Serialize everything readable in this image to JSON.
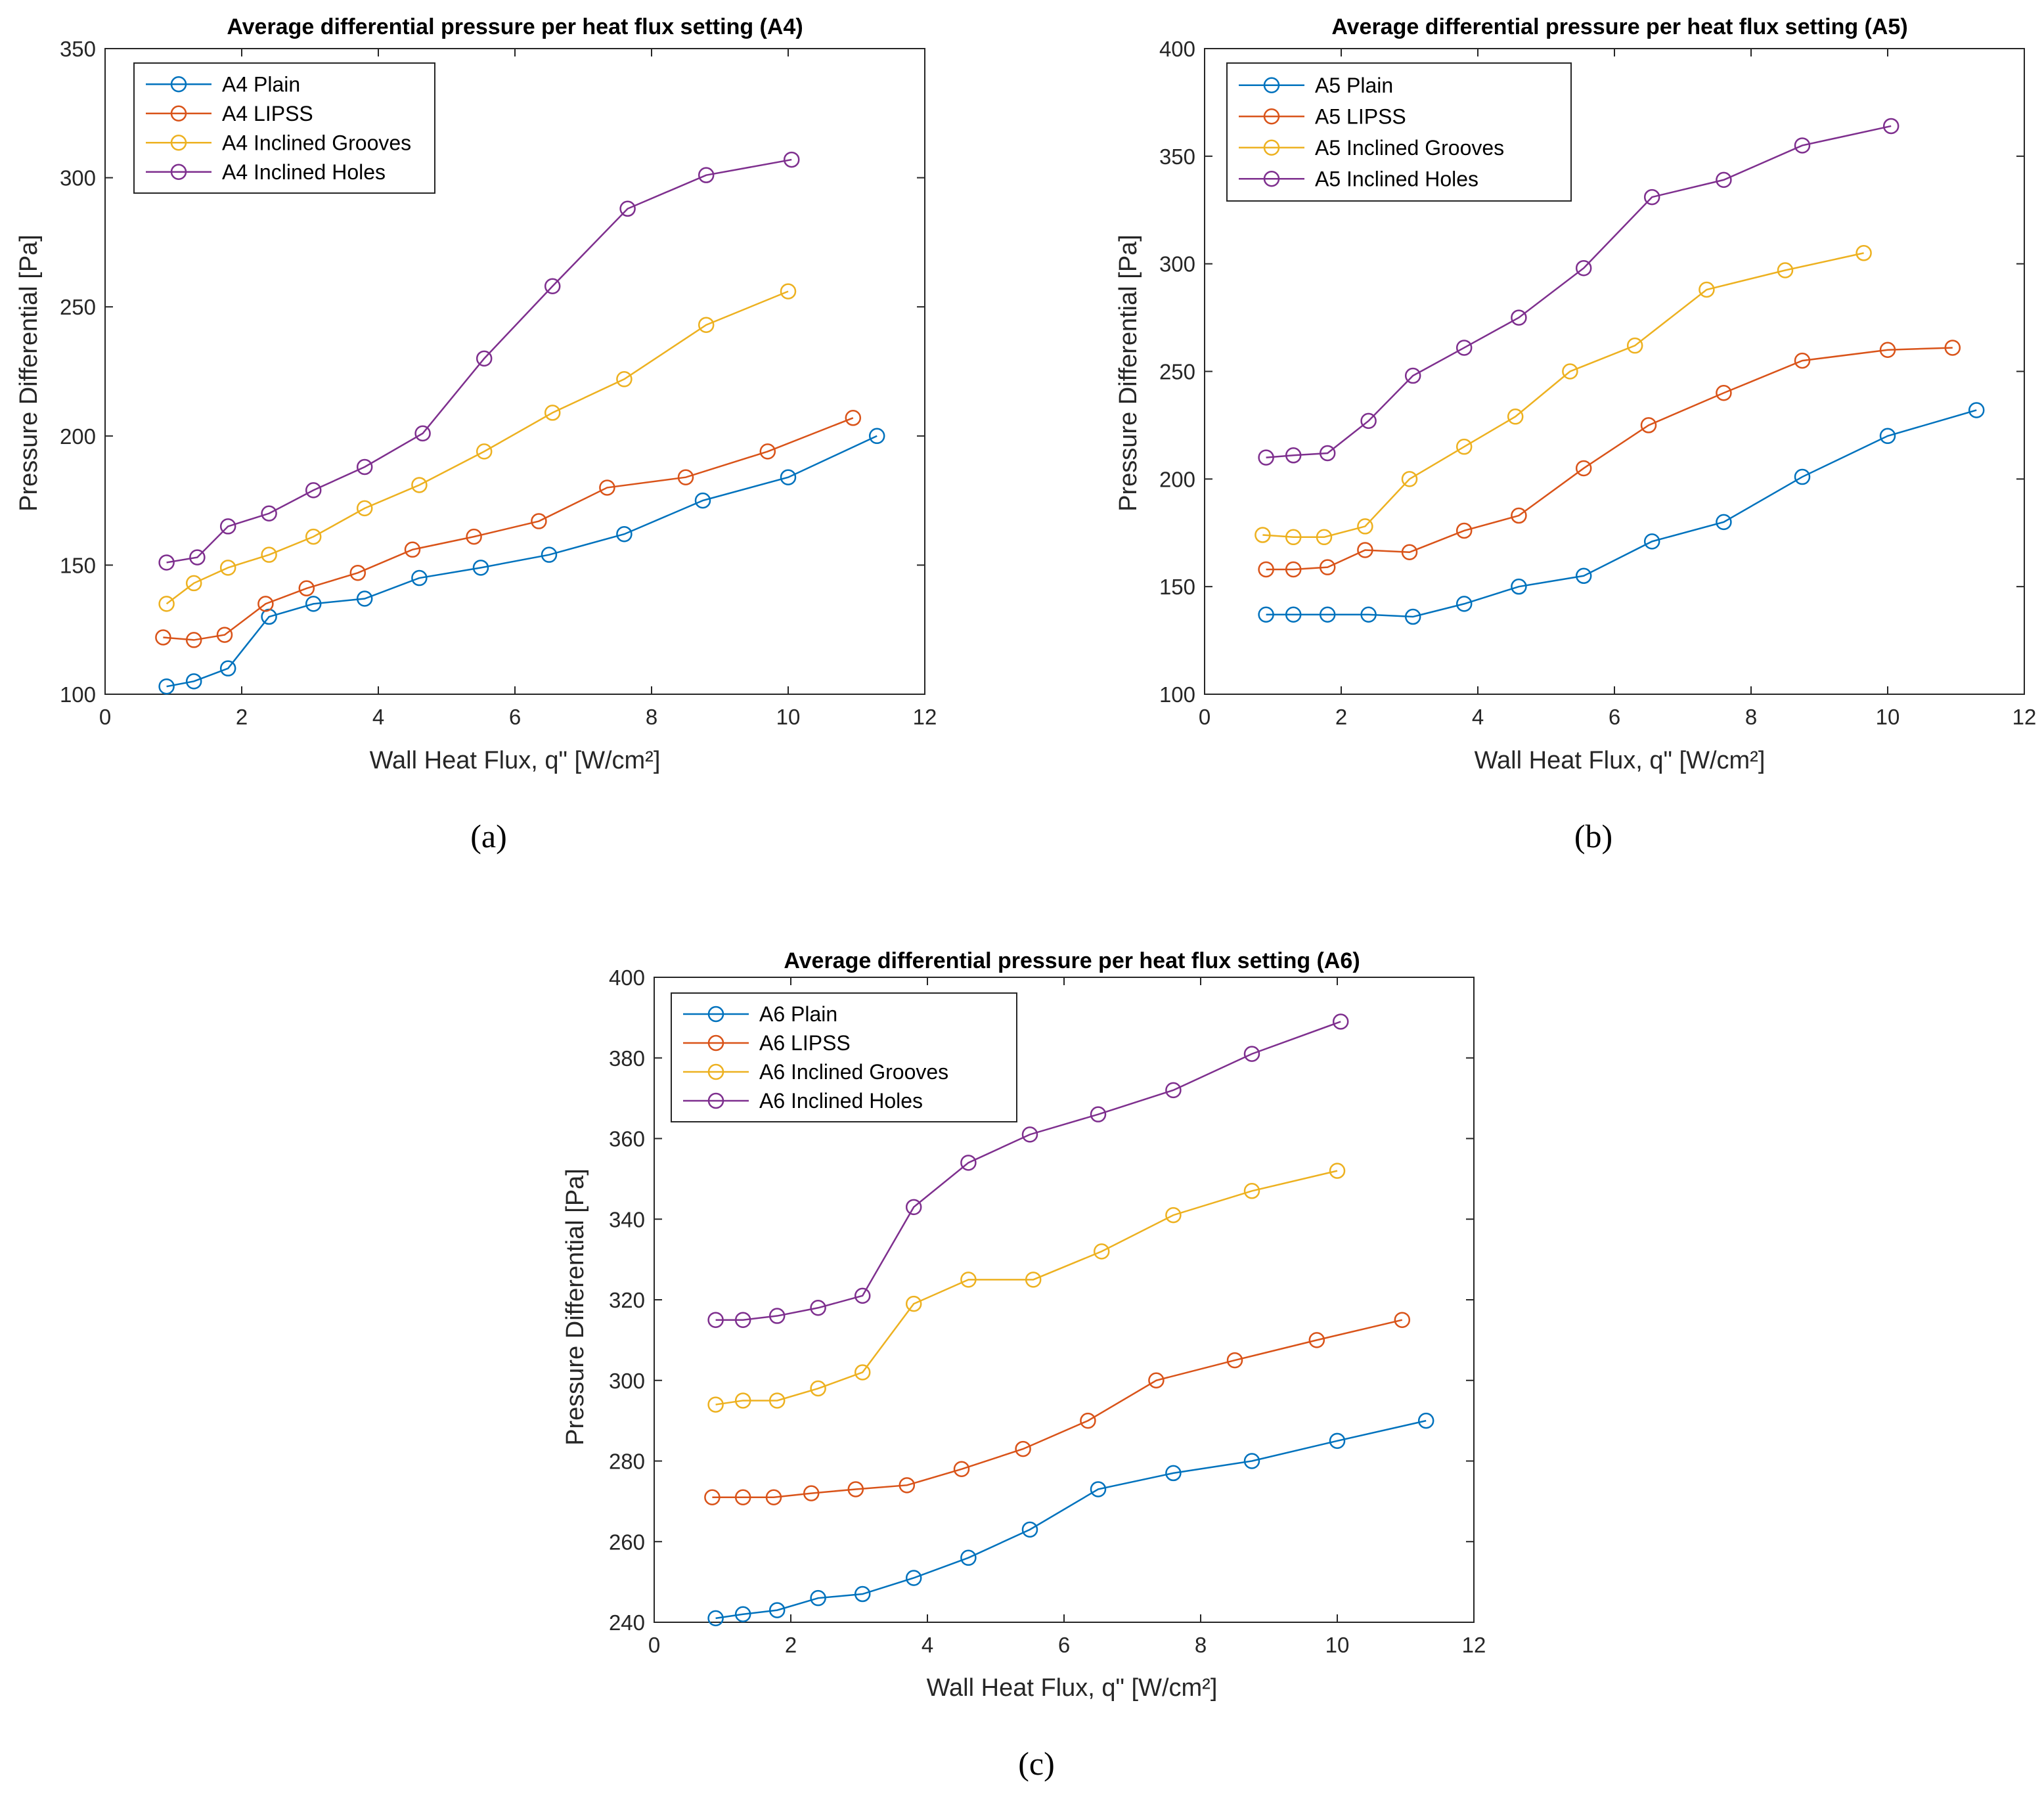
{
  "colors": {
    "plain": "#0072BD",
    "lipss": "#D95319",
    "grooves": "#EDB120",
    "holes": "#7E2F8E",
    "axis": "#262626",
    "background": "#ffffff"
  },
  "chart_data": [
    {
      "type": "line",
      "title": "Average differential pressure per heat flux setting (A4)",
      "caption": "(a)",
      "xlabel": "Wall Heat Flux, q\" [W/cm²]",
      "ylabel": "Pressure Differential [Pa]",
      "xlim": [
        0,
        12
      ],
      "ylim": [
        100,
        350
      ],
      "xticks": [
        0,
        2,
        4,
        6,
        8,
        10,
        12
      ],
      "yticks": [
        100,
        150,
        200,
        250,
        300,
        350
      ],
      "legend_position": "top-left",
      "series": [
        {
          "name": "A4 Plain",
          "color_key": "plain",
          "x": [
            0.9,
            1.3,
            1.8,
            2.4,
            3.05,
            3.8,
            4.6,
            5.5,
            6.5,
            7.6,
            8.75,
            10.0,
            11.3
          ],
          "y": [
            103,
            105,
            110,
            130,
            135,
            137,
            145,
            149,
            154,
            162,
            175,
            184,
            200
          ]
        },
        {
          "name": "A4 LIPSS",
          "color_key": "lipss",
          "x": [
            0.85,
            1.3,
            1.75,
            2.35,
            2.95,
            3.7,
            4.5,
            5.4,
            6.35,
            7.35,
            8.5,
            9.7,
            10.95
          ],
          "y": [
            122,
            121,
            123,
            135,
            141,
            147,
            156,
            161,
            167,
            180,
            184,
            194,
            207
          ]
        },
        {
          "name": "A4 Inclined Grooves",
          "color_key": "grooves",
          "x": [
            0.9,
            1.3,
            1.8,
            2.4,
            3.05,
            3.8,
            4.6,
            5.55,
            6.55,
            7.6,
            8.8,
            10.0
          ],
          "y": [
            135,
            143,
            149,
            154,
            161,
            172,
            181,
            194,
            209,
            222,
            243,
            256
          ]
        },
        {
          "name": "A4 Inclined Holes",
          "color_key": "holes",
          "x": [
            0.9,
            1.35,
            1.8,
            2.4,
            3.05,
            3.8,
            4.65,
            5.55,
            6.55,
            7.65,
            8.8,
            10.05
          ],
          "y": [
            151,
            153,
            165,
            170,
            179,
            188,
            201,
            230,
            258,
            288,
            301,
            307
          ]
        }
      ]
    },
    {
      "type": "line",
      "title": "Average differential pressure per heat flux setting (A5)",
      "caption": "(b)",
      "xlabel": "Wall Heat Flux, q\" [W/cm²]",
      "ylabel": "Pressure Differential [Pa]",
      "xlim": [
        0,
        12
      ],
      "ylim": [
        100,
        400
      ],
      "xticks": [
        0,
        2,
        4,
        6,
        8,
        10,
        12
      ],
      "yticks": [
        100,
        150,
        200,
        250,
        300,
        350,
        400
      ],
      "legend_position": "top-left",
      "series": [
        {
          "name": "A5 Plain",
          "color_key": "plain",
          "x": [
            0.9,
            1.3,
            1.8,
            2.4,
            3.05,
            3.8,
            4.6,
            5.55,
            6.55,
            7.6,
            8.75,
            10.0,
            11.3
          ],
          "y": [
            137,
            137,
            137,
            137,
            136,
            142,
            150,
            155,
            171,
            180,
            201,
            220,
            232
          ]
        },
        {
          "name": "A5 LIPSS",
          "color_key": "lipss",
          "x": [
            0.9,
            1.3,
            1.8,
            2.35,
            3.0,
            3.8,
            4.6,
            5.55,
            6.5,
            7.6,
            8.75,
            10.0,
            10.95
          ],
          "y": [
            158,
            158,
            159,
            167,
            166,
            176,
            183,
            205,
            225,
            240,
            255,
            260,
            261
          ]
        },
        {
          "name": "A5 Inclined Grooves",
          "color_key": "grooves",
          "x": [
            0.85,
            1.3,
            1.75,
            2.35,
            3.0,
            3.8,
            4.55,
            5.35,
            6.3,
            7.35,
            8.5,
            9.65
          ],
          "y": [
            174,
            173,
            173,
            178,
            200,
            215,
            229,
            250,
            262,
            288,
            297,
            305
          ]
        },
        {
          "name": "A5 Inclined Holes",
          "color_key": "holes",
          "x": [
            0.9,
            1.3,
            1.8,
            2.4,
            3.05,
            3.8,
            4.6,
            5.55,
            6.55,
            7.6,
            8.75,
            10.05
          ],
          "y": [
            210,
            211,
            212,
            227,
            248,
            261,
            275,
            298,
            331,
            339,
            355,
            364
          ]
        }
      ]
    },
    {
      "type": "line",
      "title": "Average differential pressure per heat flux setting (A6)",
      "caption": "(c)",
      "xlabel": "Wall Heat Flux, q\" [W/cm²]",
      "ylabel": "Pressure Differential [Pa]",
      "xlim": [
        0,
        12
      ],
      "ylim": [
        240,
        400
      ],
      "xticks": [
        0,
        2,
        4,
        6,
        8,
        10,
        12
      ],
      "yticks": [
        240,
        260,
        280,
        300,
        320,
        340,
        360,
        380,
        400
      ],
      "legend_position": "top-left",
      "series": [
        {
          "name": "A6 Plain",
          "color_key": "plain",
          "x": [
            0.9,
            1.3,
            1.8,
            2.4,
            3.05,
            3.8,
            4.6,
            5.5,
            6.5,
            7.6,
            8.75,
            10.0,
            11.3
          ],
          "y": [
            241,
            242,
            243,
            246,
            247,
            251,
            256,
            263,
            273,
            277,
            280,
            285,
            290
          ]
        },
        {
          "name": "A6 LIPSS",
          "color_key": "lipss",
          "x": [
            0.85,
            1.3,
            1.75,
            2.3,
            2.95,
            3.7,
            4.5,
            5.4,
            6.35,
            7.35,
            8.5,
            9.7,
            10.95
          ],
          "y": [
            271,
            271,
            271,
            272,
            273,
            274,
            278,
            283,
            290,
            300,
            305,
            310,
            315
          ]
        },
        {
          "name": "A6 Inclined Grooves",
          "color_key": "grooves",
          "x": [
            0.9,
            1.3,
            1.8,
            2.4,
            3.05,
            3.8,
            4.6,
            5.55,
            6.55,
            7.6,
            8.75,
            10.0
          ],
          "y": [
            294,
            295,
            295,
            298,
            302,
            319,
            325,
            325,
            332,
            341,
            347,
            352
          ]
        },
        {
          "name": "A6 Inclined Holes",
          "color_key": "holes",
          "x": [
            0.9,
            1.3,
            1.8,
            2.4,
            3.05,
            3.8,
            4.6,
            5.5,
            6.5,
            7.6,
            8.75,
            10.05
          ],
          "y": [
            315,
            315,
            316,
            318,
            321,
            343,
            354,
            361,
            366,
            372,
            381,
            389
          ]
        }
      ]
    }
  ]
}
